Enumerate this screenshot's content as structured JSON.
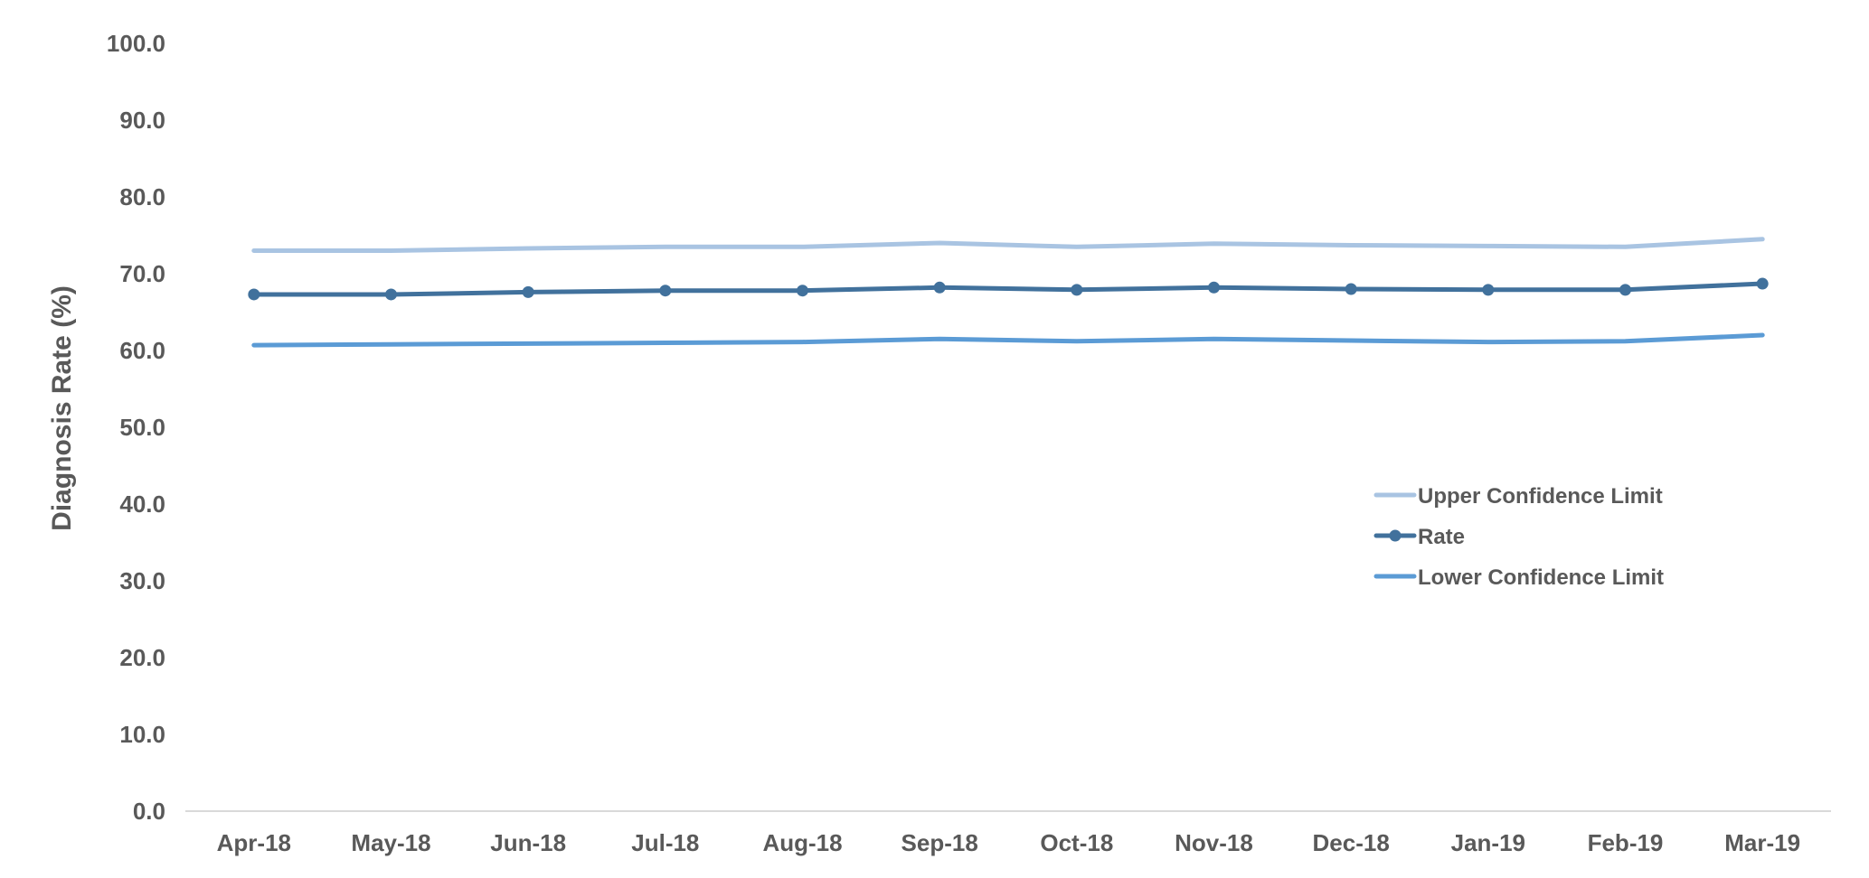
{
  "chart_data": {
    "type": "line",
    "title": "",
    "xlabel": "",
    "ylabel": "Diagnosis Rate (%)",
    "ylim": [
      0,
      100
    ],
    "yticks": [
      "0.0",
      "10.0",
      "20.0",
      "30.0",
      "40.0",
      "50.0",
      "60.0",
      "70.0",
      "80.0",
      "90.0",
      "100.0"
    ],
    "categories": [
      "Apr-18",
      "May-18",
      "Jun-18",
      "Jul-18",
      "Aug-18",
      "Sep-18",
      "Oct-18",
      "Nov-18",
      "Dec-18",
      "Jan-19",
      "Feb-19",
      "Mar-19"
    ],
    "grid": false,
    "legend_position": "right-middle",
    "series": [
      {
        "name": "Upper Confidence Limit",
        "color": "#A9C4E2",
        "markers": false,
        "values": [
          73.0,
          73.0,
          73.3,
          73.5,
          73.5,
          74.0,
          73.5,
          73.9,
          73.7,
          73.6,
          73.5,
          74.5
        ]
      },
      {
        "name": "Rate",
        "color": "#41719C",
        "markers": true,
        "values": [
          67.3,
          67.3,
          67.6,
          67.8,
          67.8,
          68.2,
          67.9,
          68.2,
          68.0,
          67.9,
          67.9,
          68.7
        ]
      },
      {
        "name": "Lower Confidence Limit",
        "color": "#5B9BD5",
        "markers": false,
        "values": [
          60.7,
          60.8,
          60.9,
          61.0,
          61.1,
          61.5,
          61.2,
          61.5,
          61.3,
          61.1,
          61.2,
          62.0
        ]
      }
    ]
  }
}
